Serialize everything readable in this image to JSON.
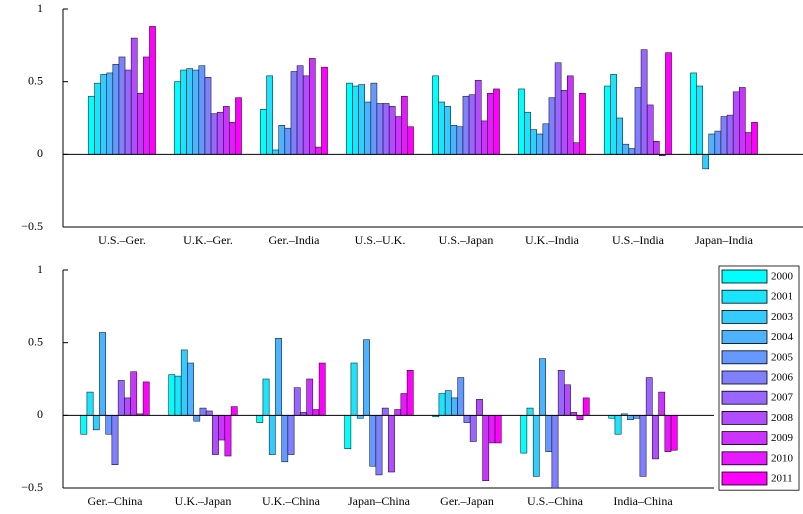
{
  "chart_data": [
    {
      "type": "bar",
      "categories": [
        "U.S.–Ger.",
        "U.K.–Ger.",
        "Ger.–India",
        "U.S.–U.K.",
        "U.S.–Japan",
        "U.K.–India",
        "U.S.–India",
        "Japan–India"
      ],
      "ylim": [
        -0.5,
        1
      ],
      "yticks": [
        {
          "value": -0.5,
          "label": "−0.5"
        },
        0,
        0.5,
        1
      ],
      "series": [
        {
          "color": "#00ffff",
          "values": [
            0.4,
            0.5,
            0.31,
            0.49,
            0.54,
            0.45,
            0.47,
            0.56
          ]
        },
        {
          "color": "#1ae5ff",
          "values": [
            0.49,
            0.58,
            0.54,
            0.47,
            0.36,
            0.29,
            0.55,
            0.47
          ]
        },
        {
          "color": "#33ccff",
          "values": [
            0.55,
            0.59,
            0.03,
            0.48,
            0.33,
            0.17,
            0.25,
            -0.1
          ]
        },
        {
          "color": "#4db2ff",
          "values": [
            0.56,
            0.58,
            0.2,
            0.36,
            0.2,
            0.14,
            0.07,
            0.14
          ]
        },
        {
          "color": "#6699ff",
          "values": [
            0.62,
            0.61,
            0.18,
            0.49,
            0.19,
            0.21,
            0.04,
            0.16
          ]
        },
        {
          "color": "#8080ff",
          "values": [
            0.67,
            0.53,
            0.57,
            0.35,
            0.4,
            0.39,
            0.46,
            0.26
          ]
        },
        {
          "color": "#9966ff",
          "values": [
            0.58,
            0.28,
            0.61,
            0.35,
            0.41,
            0.63,
            0.72,
            0.27
          ]
        },
        {
          "color": "#b24dff",
          "values": [
            0.8,
            0.29,
            0.54,
            0.33,
            0.51,
            0.44,
            0.34,
            0.43
          ]
        },
        {
          "color": "#cc33ff",
          "values": [
            0.42,
            0.33,
            0.66,
            0.26,
            0.23,
            0.54,
            0.09,
            0.46
          ]
        },
        {
          "color": "#e51aff",
          "values": [
            0.67,
            0.22,
            0.05,
            0.4,
            0.42,
            0.08,
            -0.01,
            0.15
          ]
        },
        {
          "color": "#ff00ff",
          "values": [
            0.88,
            0.39,
            0.6,
            0.19,
            0.45,
            0.42,
            0.7,
            0.22
          ]
        }
      ]
    },
    {
      "type": "bar",
      "categories": [
        "Ger.–China",
        "U.K.–Japan",
        "U.K.–China",
        "Japan–China",
        "Ger.–Japan",
        "U.S.–China",
        "India–China"
      ],
      "ylim": [
        -0.5,
        1
      ],
      "yticks": [
        {
          "value": -0.5,
          "label": "−0.5"
        },
        0,
        0.5,
        1
      ],
      "legend": "right",
      "series": [
        {
          "name": "2000",
          "color": "#00ffff",
          "values": [
            -0.13,
            0.28,
            -0.05,
            -0.23,
            -0.01,
            -0.26,
            -0.02
          ]
        },
        {
          "name": "2001",
          "color": "#1ae5ff",
          "values": [
            0.16,
            0.27,
            0.25,
            0.36,
            0.15,
            0.05,
            -0.13
          ]
        },
        {
          "name": "2003",
          "color": "#33ccff",
          "values": [
            -0.1,
            0.45,
            -0.27,
            -0.02,
            0.17,
            -0.42,
            0.01
          ]
        },
        {
          "name": "2004",
          "color": "#4db2ff",
          "values": [
            0.57,
            0.36,
            0.53,
            0.52,
            0.12,
            0.39,
            -0.03
          ]
        },
        {
          "name": "2005",
          "color": "#6699ff",
          "values": [
            -0.13,
            -0.04,
            -0.32,
            -0.35,
            0.26,
            -0.25,
            -0.02
          ]
        },
        {
          "name": "2006",
          "color": "#8080ff",
          "values": [
            -0.34,
            0.05,
            -0.27,
            -0.41,
            -0.05,
            -0.5,
            -0.42
          ]
        },
        {
          "name": "2007",
          "color": "#9966ff",
          "values": [
            0.24,
            0.03,
            0.19,
            0.05,
            -0.18,
            0.31,
            0.26
          ]
        },
        {
          "name": "2008",
          "color": "#b24dff",
          "values": [
            0.12,
            -0.27,
            0.02,
            -0.39,
            0.11,
            0.21,
            -0.3
          ]
        },
        {
          "name": "2009",
          "color": "#cc33ff",
          "values": [
            0.3,
            -0.17,
            0.25,
            0.04,
            -0.45,
            0.02,
            0.16
          ]
        },
        {
          "name": "2010",
          "color": "#e51aff",
          "values": [
            0.01,
            -0.28,
            0.04,
            0.15,
            -0.19,
            -0.03,
            -0.25
          ]
        },
        {
          "name": "2011",
          "color": "#ff00ff",
          "values": [
            0.23,
            0.06,
            0.36,
            0.31,
            -0.19,
            0.12,
            -0.24
          ]
        }
      ]
    }
  ]
}
